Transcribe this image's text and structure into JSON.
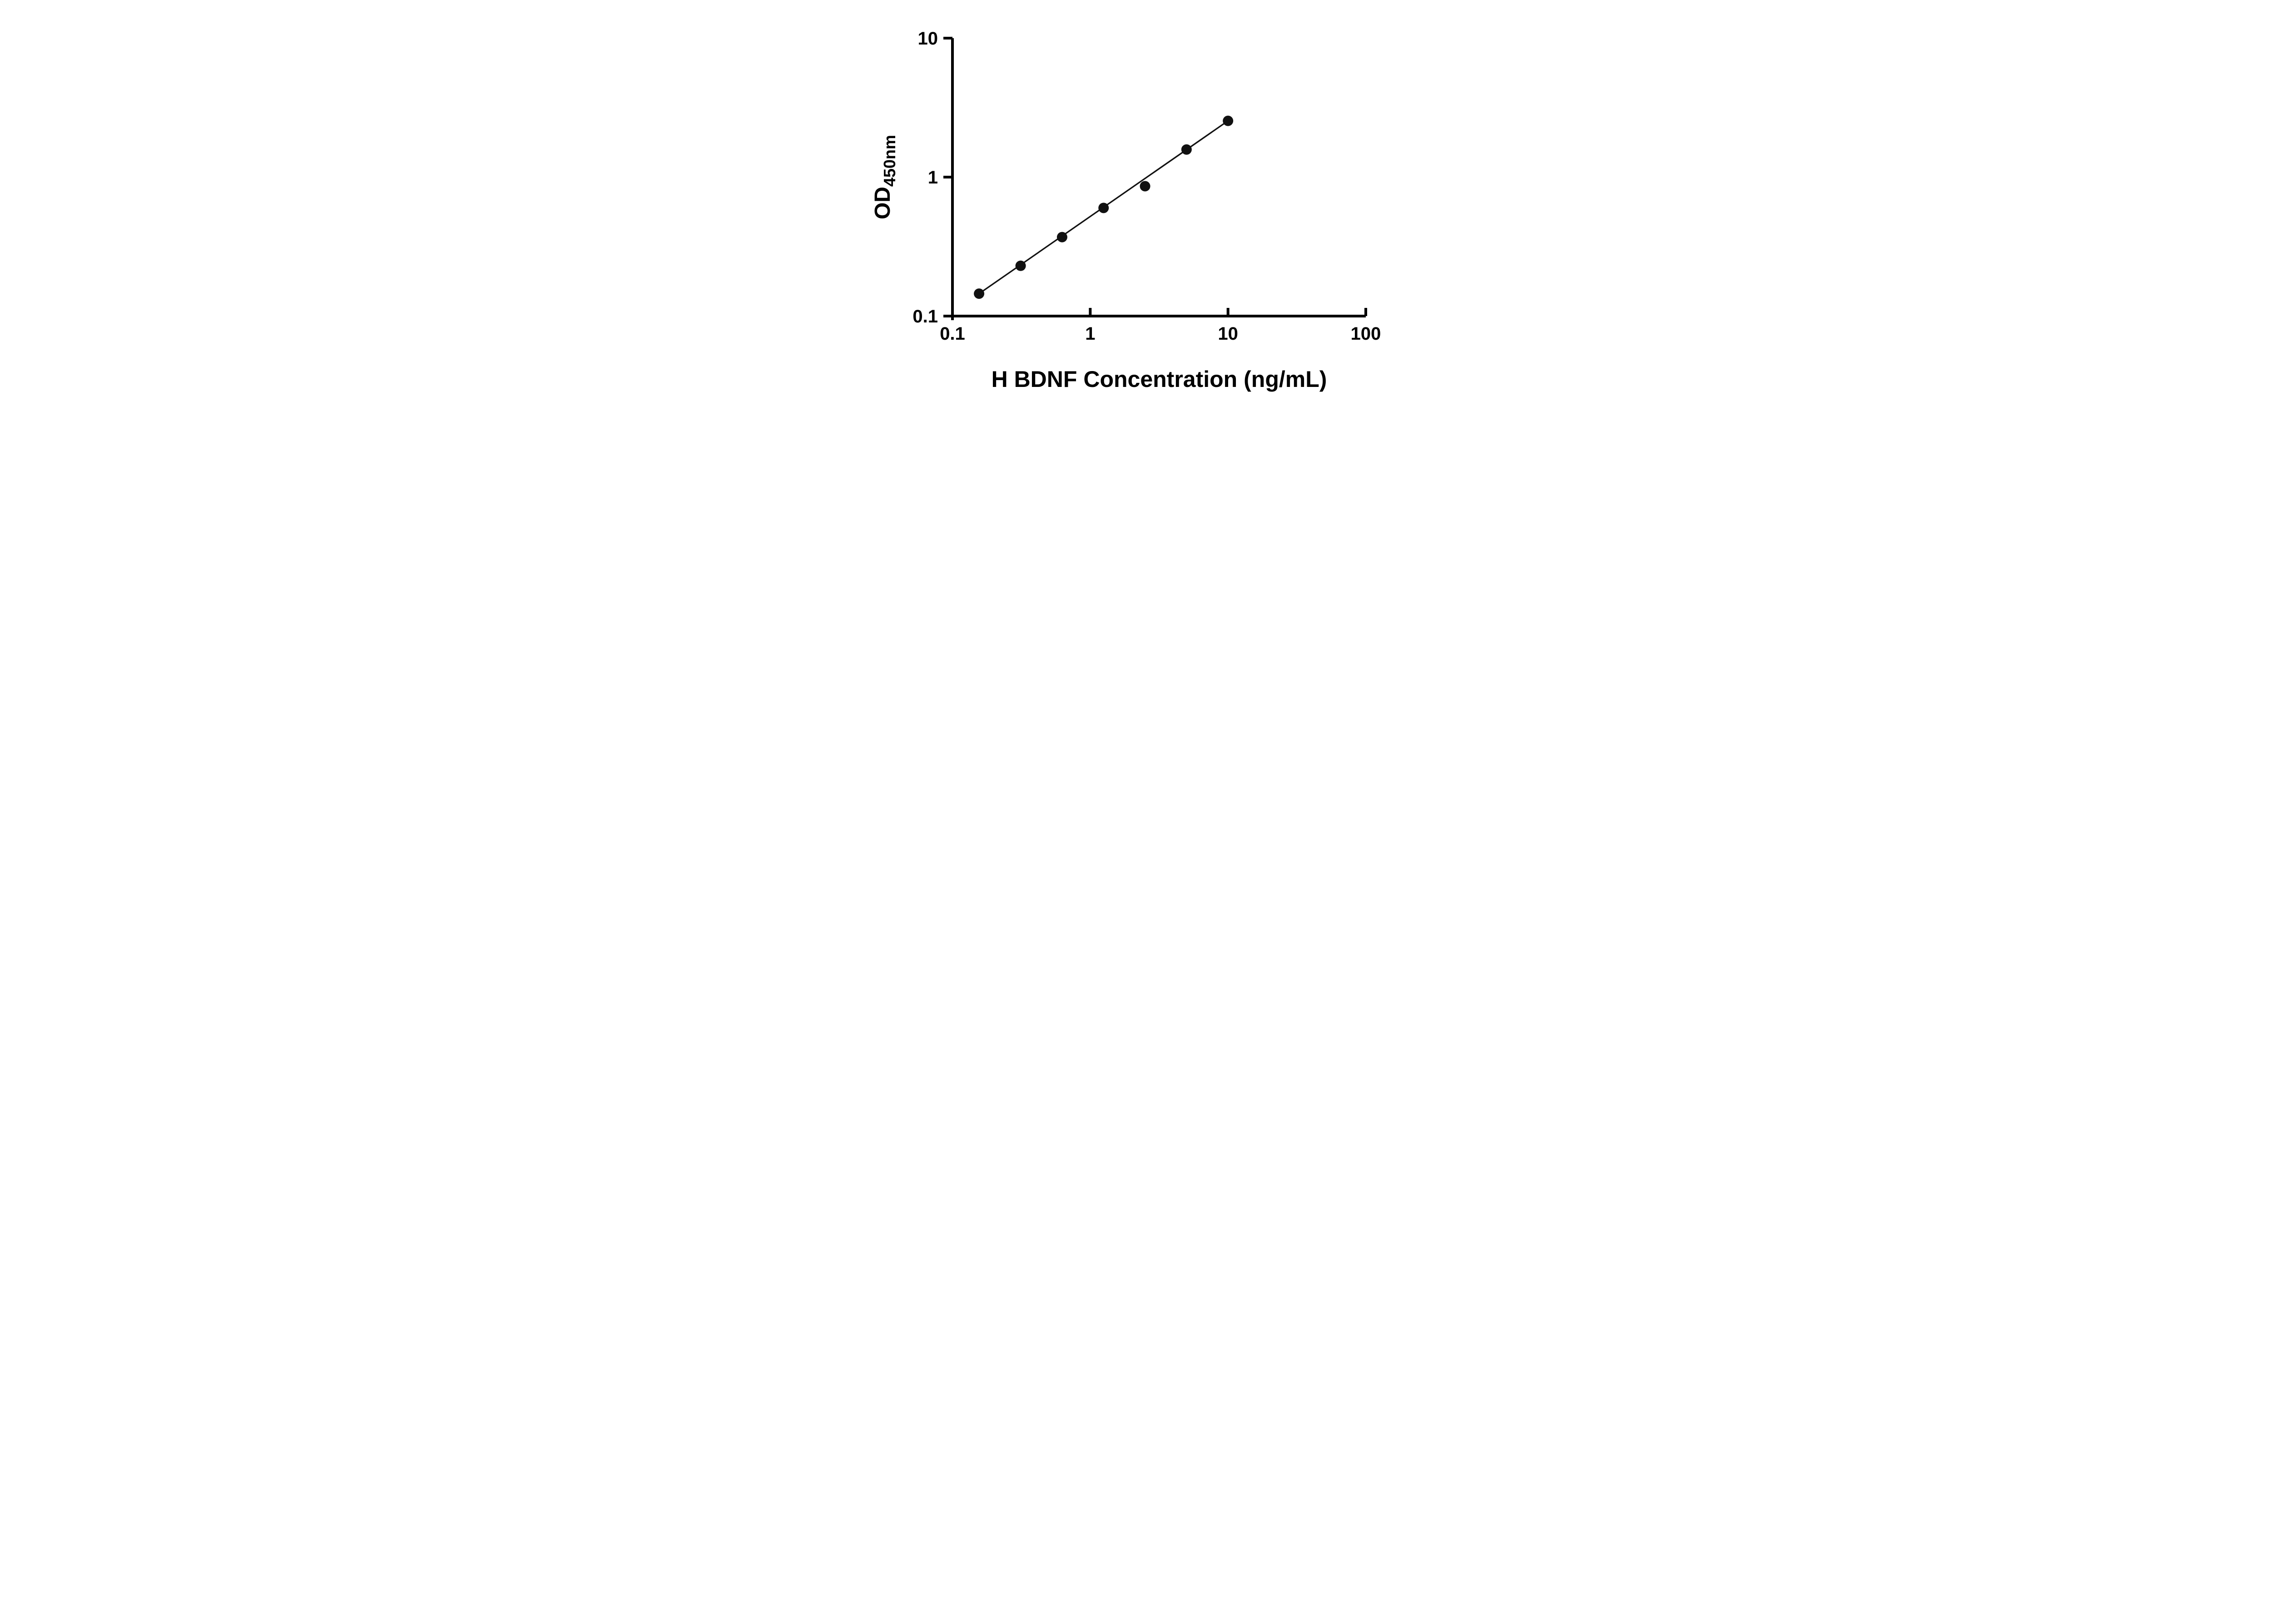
{
  "chart_data": {
    "type": "scatter",
    "xlabel": "H BDNF Concentration (ng/mL)",
    "ylabel_main": "OD",
    "ylabel_sub": "450nm",
    "x_scale": "log10",
    "y_scale": "log10",
    "xlim": [
      0.1,
      100
    ],
    "ylim": [
      0.1,
      10
    ],
    "x_ticks": [
      0.1,
      1,
      10,
      100
    ],
    "x_tick_labels": [
      "0.1",
      "1",
      "10",
      "100"
    ],
    "y_ticks": [
      0.1,
      1,
      10
    ],
    "y_tick_labels": [
      "0.1",
      "1",
      "10"
    ],
    "grid": false,
    "legend": "none",
    "points": [
      {
        "x": 0.156,
        "y": 0.145
      },
      {
        "x": 0.3125,
        "y": 0.23
      },
      {
        "x": 0.625,
        "y": 0.37
      },
      {
        "x": 1.25,
        "y": 0.6
      },
      {
        "x": 2.5,
        "y": 0.86
      },
      {
        "x": 5,
        "y": 1.58
      },
      {
        "x": 10,
        "y": 2.54
      }
    ],
    "trendline": {
      "shape": "straight line in log-log space",
      "x_start": 0.156,
      "y_start": 0.145,
      "x_end": 10,
      "y_end": 2.54
    },
    "colors": {
      "axis": "#000000",
      "line": "#111111",
      "marker": "#111111",
      "background": "#ffffff"
    }
  }
}
